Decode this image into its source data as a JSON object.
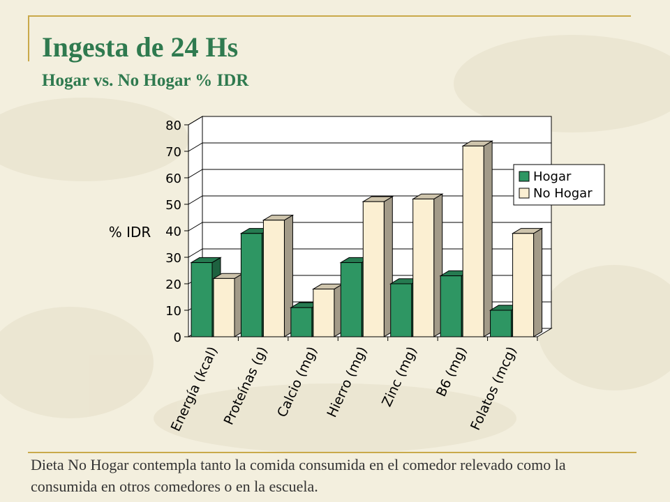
{
  "slide": {
    "title": "Ingesta de 24 Hs",
    "subtitle": "Hogar vs. No Hogar % IDR",
    "note": "Dieta No Hogar contempla tanto la comida consumida en el comedor relevado como la consumida en otros comedores o en la escuela."
  },
  "colors": {
    "accent_rule": "#c9a94a",
    "title": "#2f7a4f",
    "hogar": "#2e9663",
    "no_hogar": "#fbefd2"
  },
  "chart_data": {
    "type": "bar",
    "style": "3d-clustered",
    "categories": [
      "Energía (kcal)",
      "Proteínas (g)",
      "Calcio (mg)",
      "Hierro (mg)",
      "Zinc (mg)",
      "B6 (mg)",
      "Folatos (mcg)"
    ],
    "series": [
      {
        "name": "Hogar",
        "values": [
          28,
          39,
          11,
          28,
          20,
          23,
          10
        ]
      },
      {
        "name": "No Hogar",
        "values": [
          22,
          44,
          18,
          51,
          52,
          72,
          39
        ]
      }
    ],
    "ylabel": "% IDR",
    "ylim": [
      0,
      80
    ],
    "yticks": [
      0,
      10,
      20,
      30,
      40,
      50,
      60,
      70,
      80
    ],
    "grid": true,
    "legend_position": "right"
  }
}
